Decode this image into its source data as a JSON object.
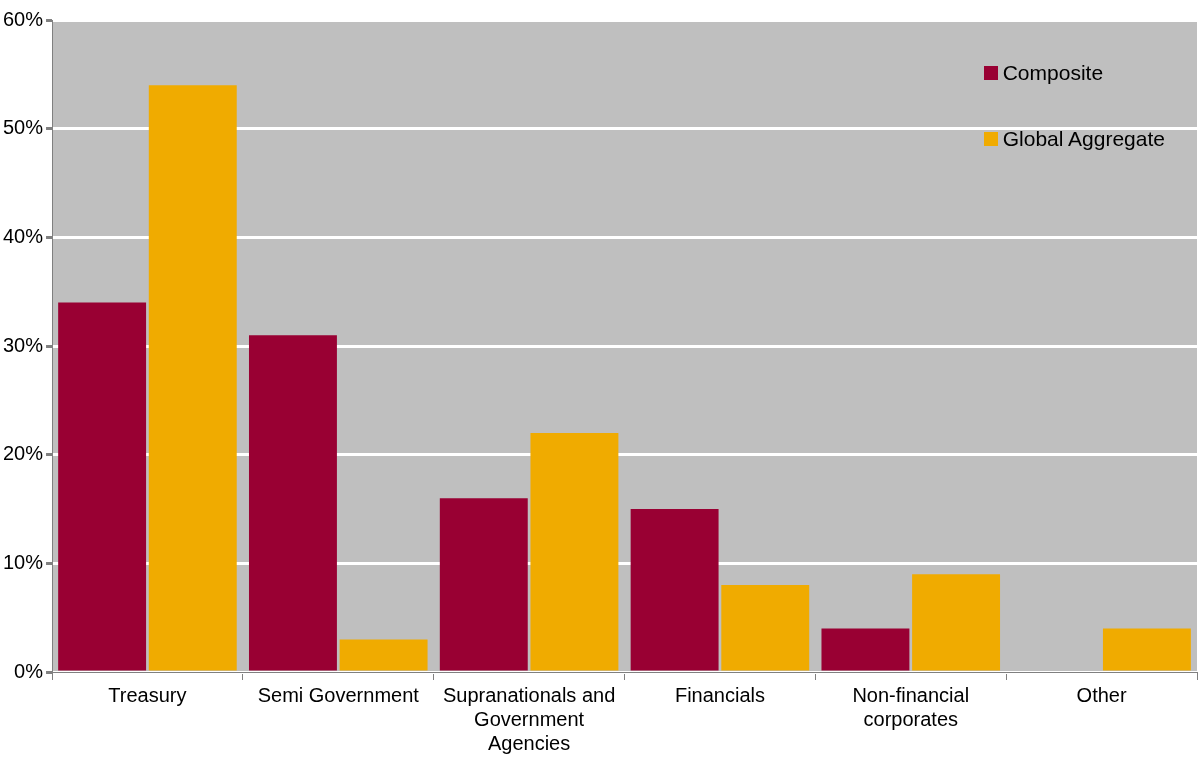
{
  "chart_data": {
    "type": "bar",
    "categories": [
      "Treasury",
      "Semi Government",
      "Supranationals and Government Agencies",
      "Financials",
      "Non-financial corporates",
      "Other"
    ],
    "series": [
      {
        "name": "Composite",
        "color": "#990033",
        "values": [
          34,
          31,
          16,
          15,
          4,
          0
        ]
      },
      {
        "name": "Global Aggregate",
        "color": "#f0ab00",
        "values": [
          54,
          3,
          22,
          8,
          9,
          4
        ]
      }
    ],
    "ylim": [
      0,
      60
    ],
    "yticks": [
      {
        "value": 0,
        "label": "0%"
      },
      {
        "value": 10,
        "label": "10%"
      },
      {
        "value": 20,
        "label": "20%"
      },
      {
        "value": 30,
        "label": "30%"
      },
      {
        "value": 40,
        "label": "40%"
      },
      {
        "value": 50,
        "label": "50%"
      },
      {
        "value": 60,
        "label": "60%"
      }
    ],
    "grid": "y",
    "legend": "top right"
  }
}
